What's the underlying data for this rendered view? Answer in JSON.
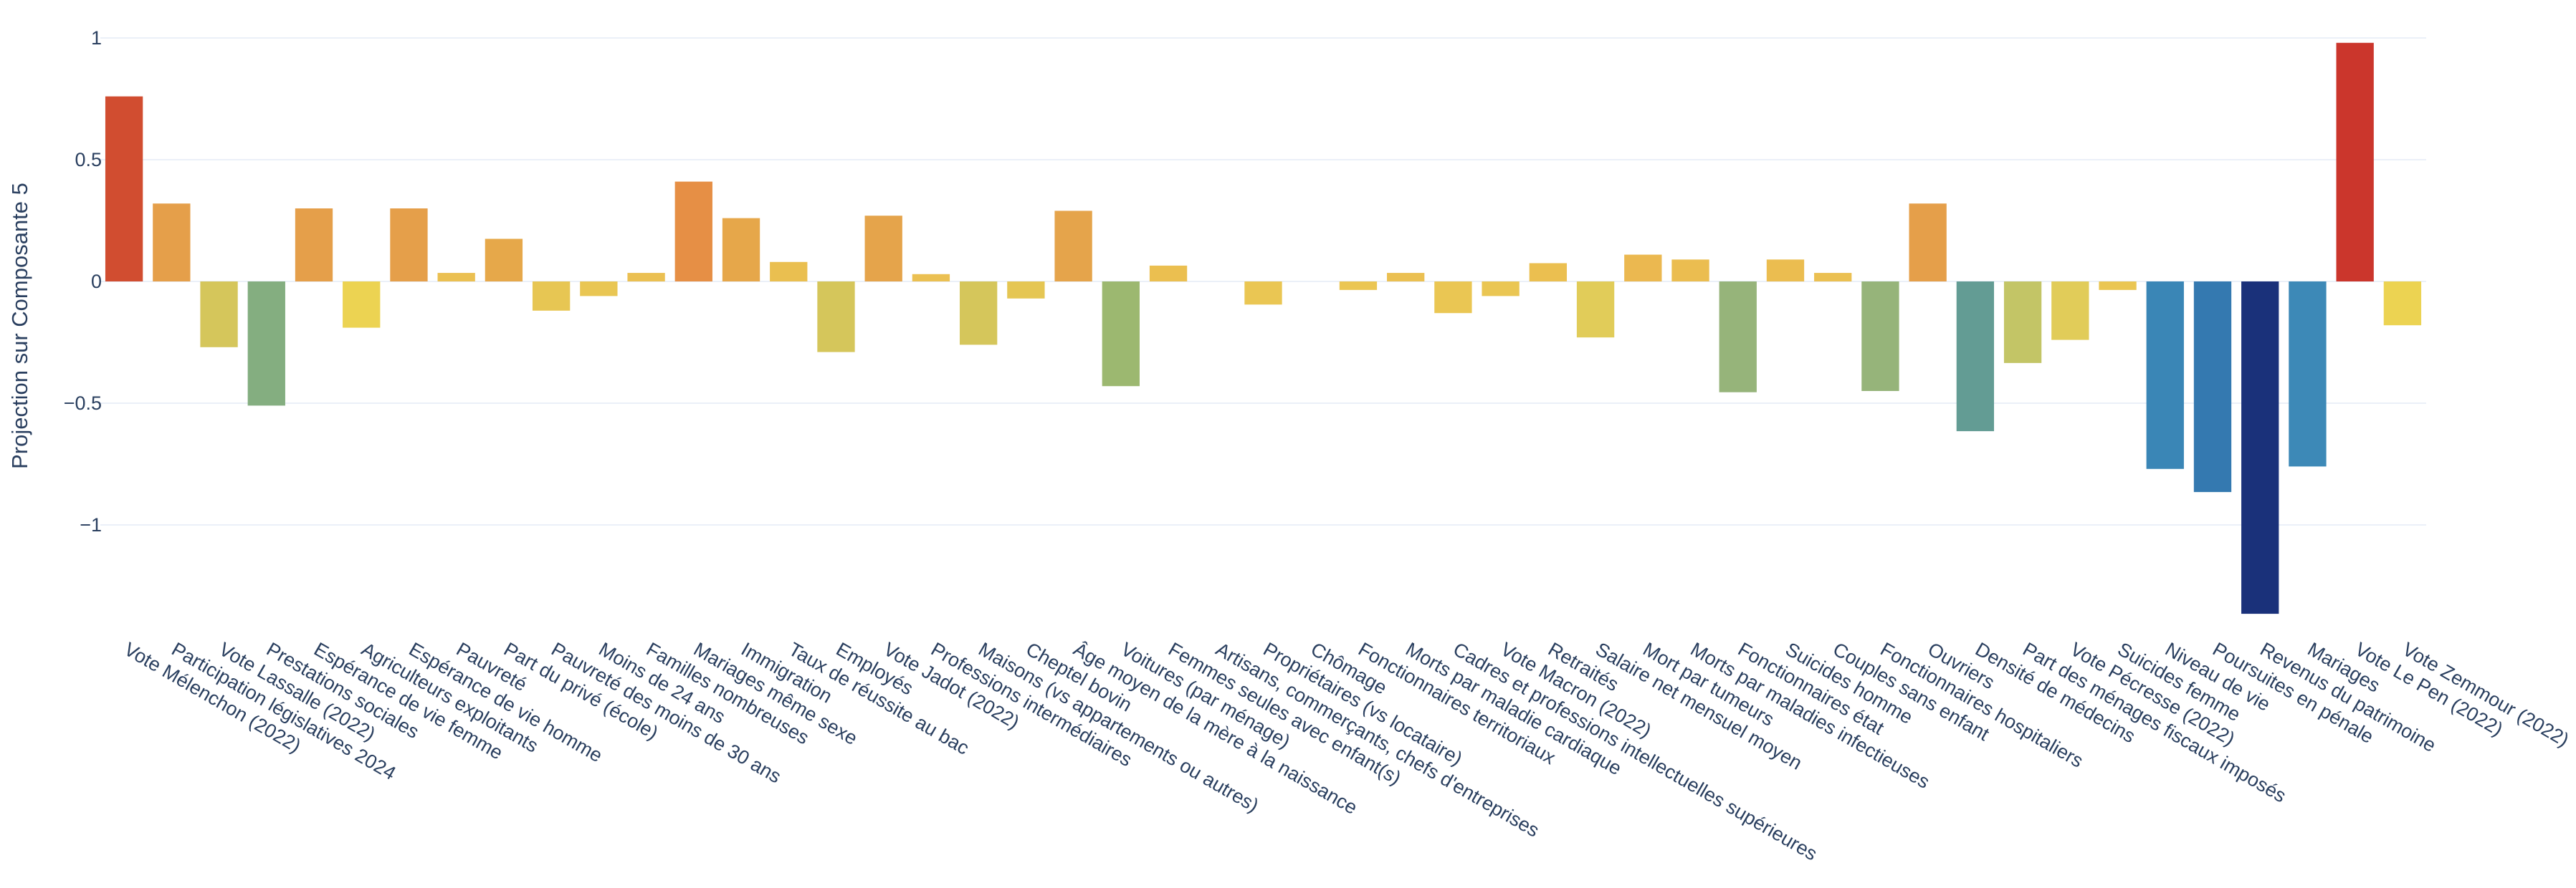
{
  "chart_data": {
    "type": "bar",
    "title": "",
    "xlabel": "",
    "ylabel": "Projection sur Composante 5",
    "ylim": [
      -1.4,
      1.02
    ],
    "yticks": [
      1,
      0.5,
      0,
      -0.5,
      -1
    ],
    "ytick_labels": [
      "1",
      "0.5",
      "0",
      "−0.5",
      "−1"
    ],
    "grid": true,
    "legend": "none",
    "colorscale": "Spectral (red = high, blue = low)",
    "categories": [
      "Vote Mélenchon (2022)",
      "Participation législatives 2024",
      "Vote Lassalle (2022)",
      "Prestations sociales",
      "Espérance de vie femme",
      "Agriculteurs exploitants",
      "Espérance de vie homme",
      "Pauvreté",
      "Part du privé (école)",
      "Pauvreté des moins de 30 ans",
      "Moins de 24 ans",
      "Familles nombreuses",
      "Mariages même sexe",
      "Immigration",
      "Taux de réussite au bac",
      "Employés",
      "Vote Jadot (2022)",
      "Professions intermédiaires",
      "Maisons (vs appartements ou autres)",
      "Cheptel bovin",
      "Âge moyen de la mère à la naissance",
      "Voitures (par ménage)",
      "Femmes seules avec enfant(s)",
      "Artisans, commerçants, chefs d'entreprises",
      "Propriétaires (vs locataire)",
      "Chômage",
      "Fonctionnaires territoriaux",
      "Morts par maladie cardiaque",
      "Cadres et professions intellectuelles supérieures",
      "Vote Macron (2022)",
      "Retraités",
      "Salaire net mensuel moyen",
      "Mort par tumeurs",
      "Morts par maladies infectieuses",
      "Fonctionnaires état",
      "Suicides homme",
      "Couples sans enfant",
      "Fonctionnaires hospitaliers",
      "Ouvriers",
      "Densité de médecins",
      "Part des ménages fiscaux imposés",
      "Vote Pécresse (2022)",
      "Suicides femme",
      "Niveau de vie",
      "Poursuites en pénale",
      "Revenus du patrimoine",
      "Mariages",
      "Vote Le Pen (2022)",
      "Vote Zemmour (2022)"
    ],
    "values": [
      0.76,
      0.32,
      -0.27,
      -0.51,
      0.3,
      -0.19,
      0.3,
      0.035,
      0.175,
      -0.12,
      -0.06,
      0.035,
      0.41,
      0.26,
      0.08,
      -0.29,
      0.27,
      0.03,
      -0.26,
      -0.07,
      0.29,
      -0.43,
      0.065,
      0.0,
      -0.095,
      0.0,
      -0.035,
      0.035,
      -0.13,
      -0.06,
      0.075,
      -0.23,
      0.11,
      0.09,
      -0.455,
      0.09,
      0.035,
      -0.45,
      0.32,
      -0.615,
      -0.335,
      -0.24,
      -0.035,
      -0.77,
      -0.865,
      -1.365,
      -0.76,
      0.98,
      -0.18
    ],
    "colors": [
      "#d14d30",
      "#e59f4a",
      "#d5c65b",
      "#84ae80",
      "#e59f4a",
      "#ecd352",
      "#e59f4a",
      "#ebc052",
      "#e6a84a",
      "#e7c653",
      "#e9c653",
      "#ebc052",
      "#e68f45",
      "#e6a74a",
      "#eabf50",
      "#d5c65b",
      "#e5a44b",
      "#ebc052",
      "#d5c65b",
      "#e5c653",
      "#e5a44b",
      "#9cb870",
      "#ebbf50",
      "#ebc052",
      "#eac653",
      "#ebc052",
      "#ebc653",
      "#ebc052",
      "#eac653",
      "#eac653",
      "#ebbf50",
      "#e1cc59",
      "#ebb850",
      "#ebbd50",
      "#96b47a",
      "#ebbd50",
      "#ebc052",
      "#96b47a",
      "#e59f4a",
      "#639c94",
      "#c3c566",
      "#e1cc59",
      "#eac653",
      "#3a86b6",
      "#3479b0",
      "#1a317a",
      "#3d89b7",
      "#cb362c",
      "#ecd352"
    ]
  }
}
